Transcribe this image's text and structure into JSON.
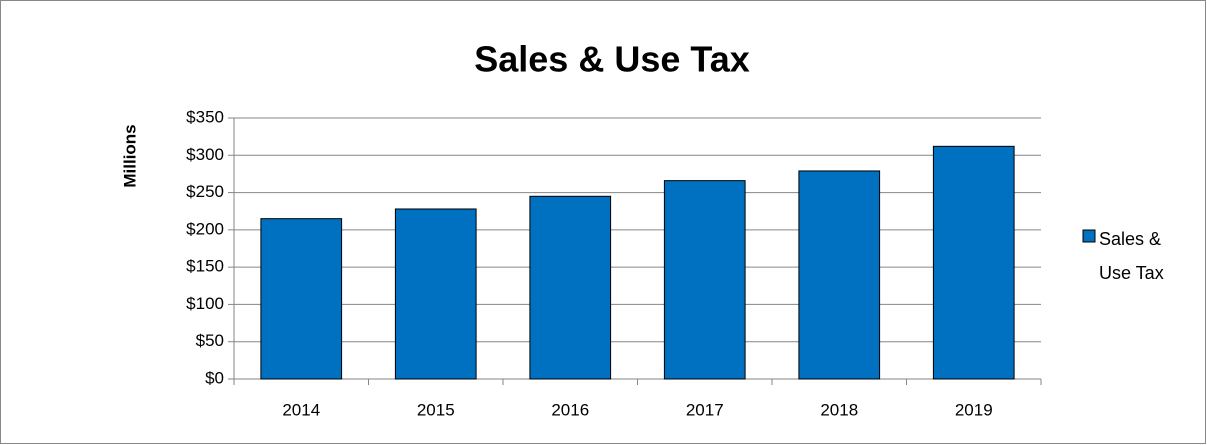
{
  "chart_data": {
    "type": "bar",
    "title": "Sales & Use Tax",
    "y_label": "Millions",
    "categories": [
      "2014",
      "2015",
      "2016",
      "2017",
      "2018",
      "2019"
    ],
    "series": [
      {
        "name": "Sales & Use Tax",
        "color": "#0070c0",
        "values": [
          215,
          228,
          245,
          266,
          279,
          312
        ]
      }
    ],
    "ylim": [
      0,
      350
    ],
    "yticks": [
      {
        "value": 0,
        "label": "$0"
      },
      {
        "value": 50,
        "label": "$50"
      },
      {
        "value": 100,
        "label": "$100"
      },
      {
        "value": 150,
        "label": "$150"
      },
      {
        "value": 200,
        "label": "$200"
      },
      {
        "value": 250,
        "label": "$250"
      },
      {
        "value": 300,
        "label": "$300"
      },
      {
        "value": 350,
        "label": "$350"
      }
    ],
    "grid": true,
    "legend": "right"
  }
}
